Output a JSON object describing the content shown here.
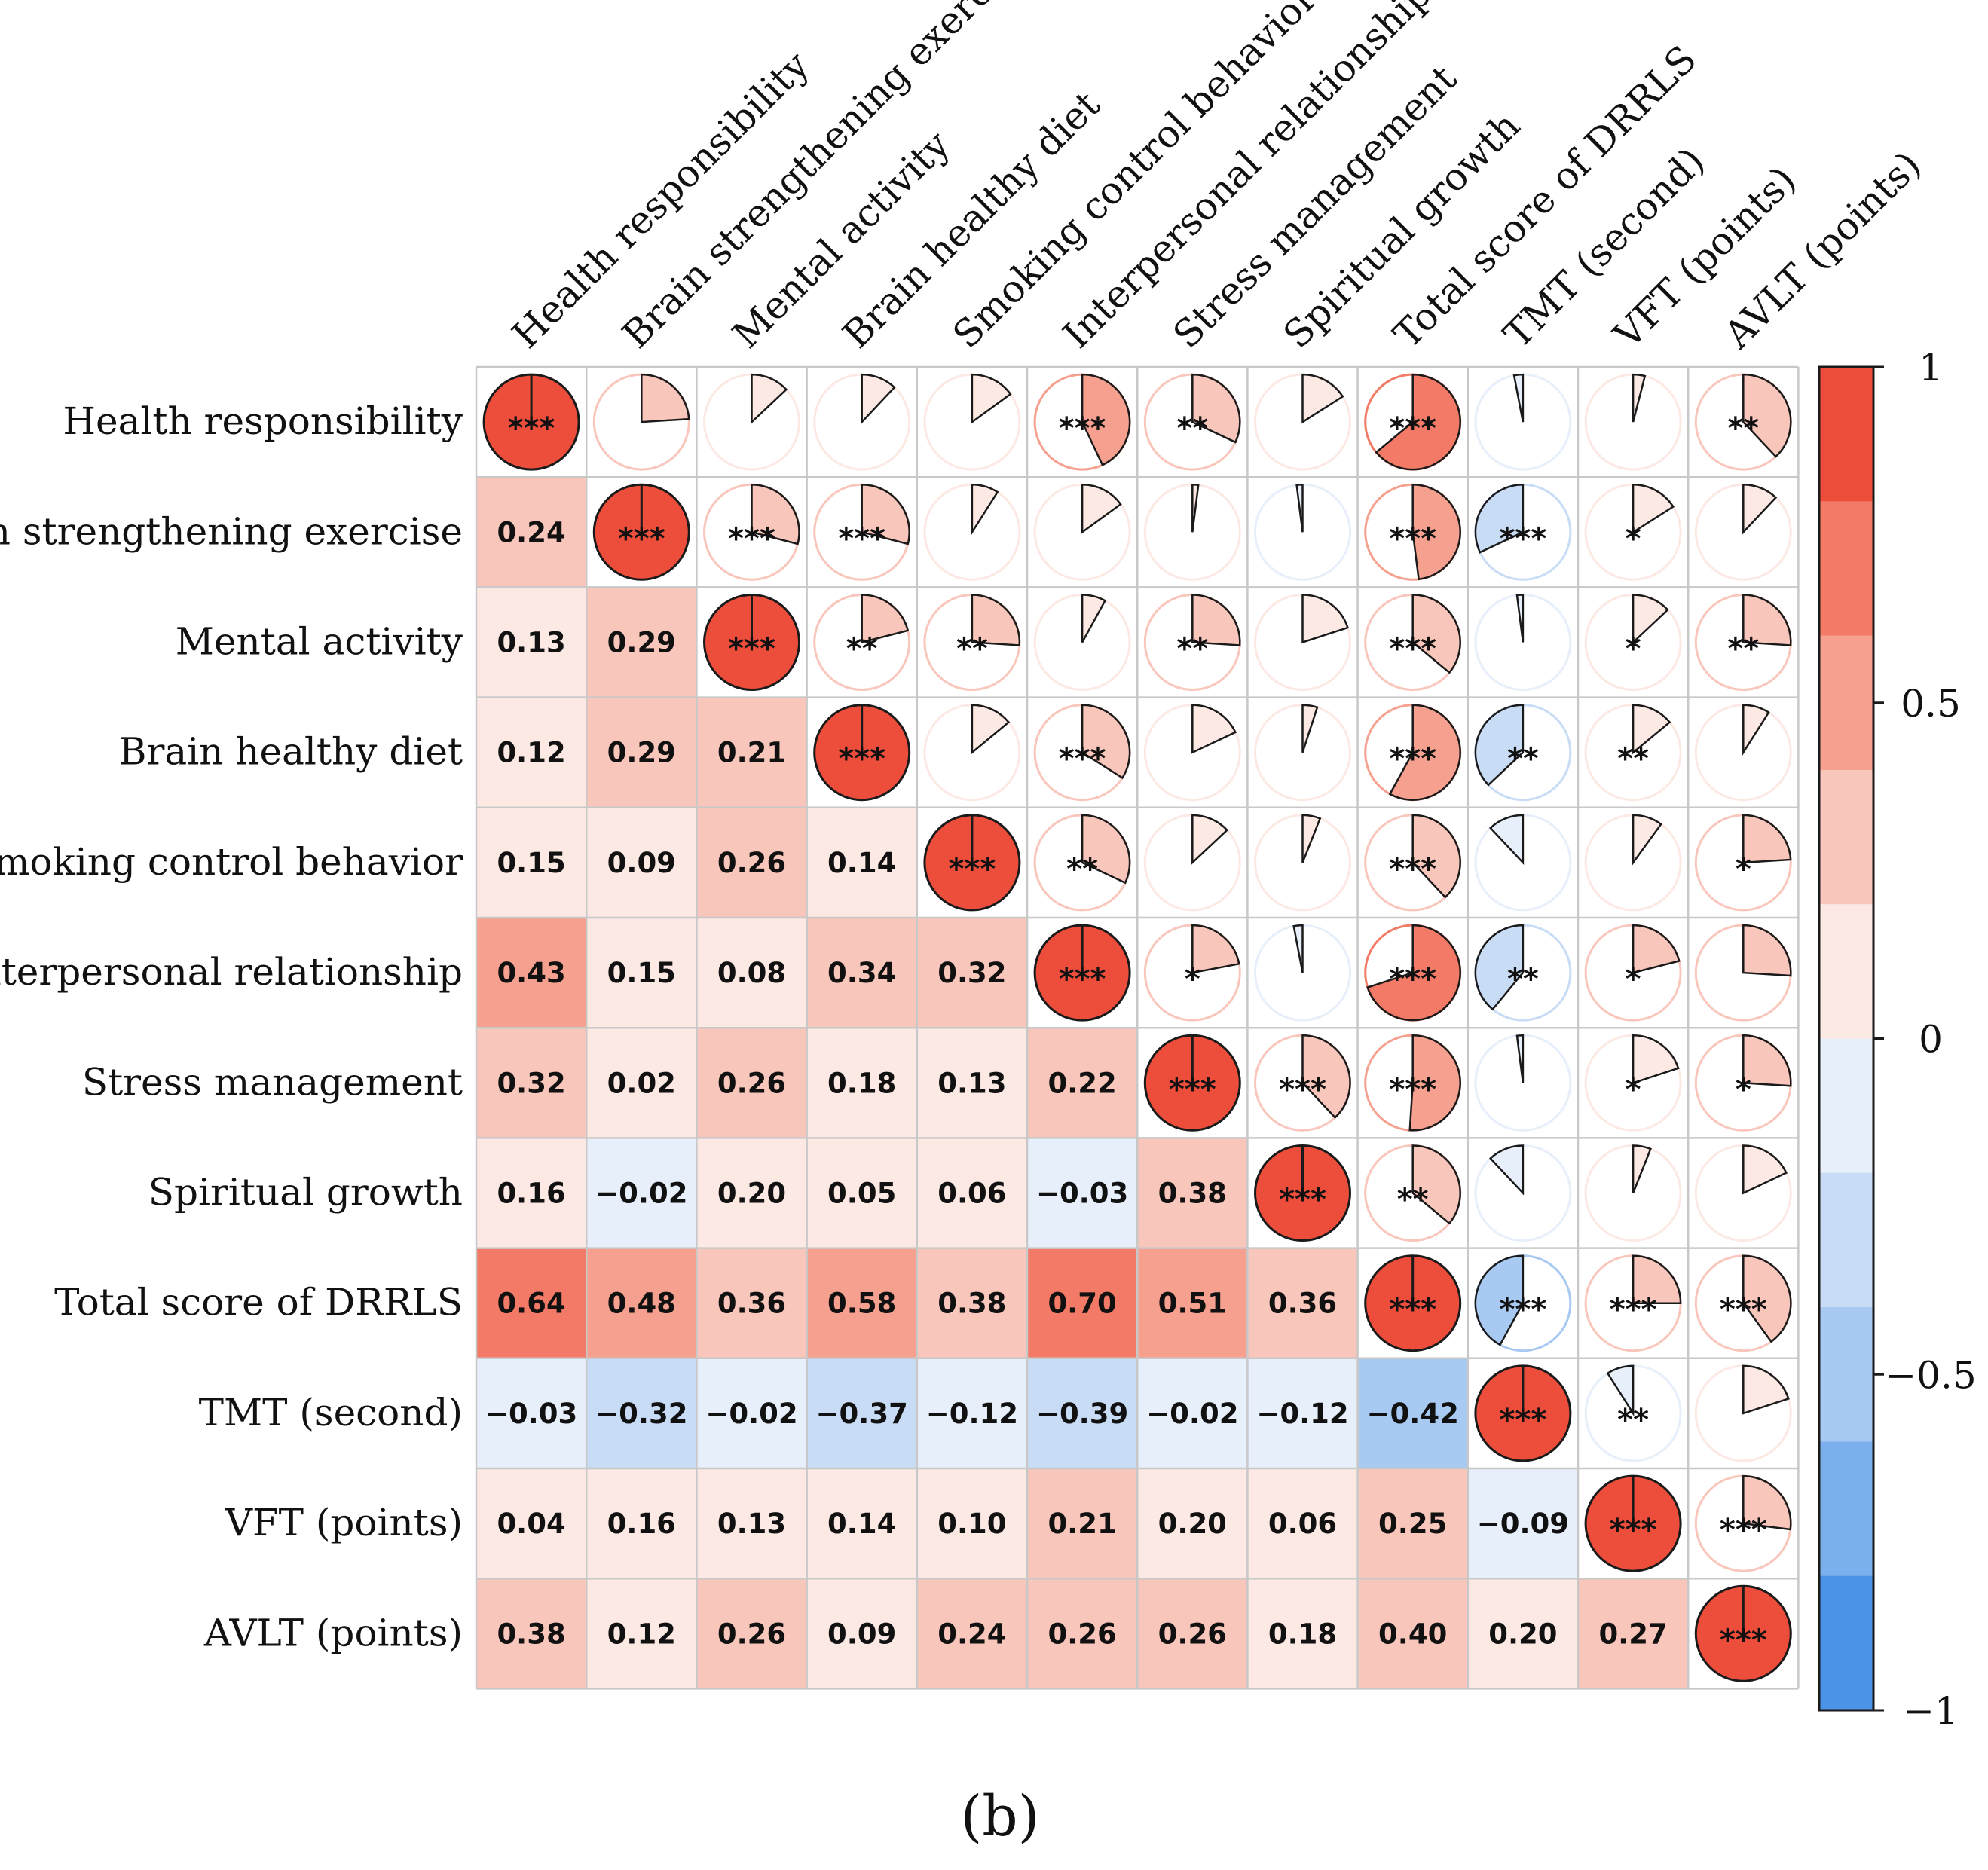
{
  "chart_data": {
    "type": "heatmap",
    "subtype": "correlation-matrix",
    "variables": [
      "Health responsibility",
      "Brain strengthening exercise",
      "Mental activity",
      "Brain healthy diet",
      "Smoking control behavior",
      "Interpersonal relationship",
      "Stress management",
      "Spiritual growth",
      "Total score of  DRRLS",
      "TMT (second)",
      "VFT (points)",
      "AVLT (points)"
    ],
    "column_labels": [
      "Health responsibility",
      "Brain strengthening exercise",
      "Mental activity",
      "Brain healthy diet",
      "Smoking control behavior",
      "Interpersonal relationship",
      "Stress management",
      "Spiritual growth",
      "Total score of DRRLS",
      "TMT (second)",
      "VFT (points)",
      "AVLT (points)"
    ],
    "matrix": [
      [
        1,
        0.24,
        0.13,
        0.12,
        0.15,
        0.43,
        0.32,
        0.16,
        0.64,
        -0.03,
        0.04,
        0.38
      ],
      [
        0.24,
        1,
        0.29,
        0.29,
        0.09,
        0.15,
        0.02,
        -0.02,
        0.48,
        -0.32,
        0.16,
        0.12
      ],
      [
        0.13,
        0.29,
        1,
        0.21,
        0.26,
        0.08,
        0.26,
        0.2,
        0.36,
        -0.02,
        0.13,
        0.26
      ],
      [
        0.12,
        0.29,
        0.21,
        1,
        0.14,
        0.34,
        0.18,
        0.05,
        0.58,
        -0.37,
        0.14,
        0.09
      ],
      [
        0.15,
        0.09,
        0.26,
        0.14,
        1,
        0.32,
        0.13,
        0.06,
        0.38,
        -0.12,
        0.1,
        0.24
      ],
      [
        0.43,
        0.15,
        0.08,
        0.34,
        0.32,
        1,
        0.22,
        -0.03,
        0.7,
        -0.39,
        0.21,
        0.26
      ],
      [
        0.32,
        0.02,
        0.26,
        0.18,
        0.13,
        0.22,
        1,
        0.38,
        0.51,
        -0.02,
        0.2,
        0.26
      ],
      [
        0.16,
        -0.02,
        0.2,
        0.05,
        0.06,
        -0.03,
        0.38,
        1,
        0.36,
        -0.12,
        0.06,
        0.18
      ],
      [
        0.64,
        0.48,
        0.36,
        0.58,
        0.38,
        0.7,
        0.51,
        0.36,
        1,
        -0.42,
        0.25,
        0.4
      ],
      [
        -0.03,
        -0.32,
        -0.02,
        -0.37,
        -0.12,
        -0.39,
        -0.02,
        -0.12,
        -0.42,
        1,
        -0.09,
        0.2
      ],
      [
        0.04,
        0.16,
        0.13,
        0.14,
        0.1,
        0.21,
        0.2,
        0.06,
        0.25,
        -0.09,
        1,
        0.27
      ],
      [
        0.38,
        0.12,
        0.26,
        0.09,
        0.24,
        0.26,
        0.26,
        0.18,
        0.4,
        0.2,
        0.27,
        1
      ]
    ],
    "lower_labels": [
      [
        null,
        null,
        null,
        null,
        null,
        null,
        null,
        null,
        null,
        null,
        null,
        null
      ],
      [
        "0.24",
        null,
        null,
        null,
        null,
        null,
        null,
        null,
        null,
        null,
        null,
        null
      ],
      [
        "0.13",
        "0.29",
        null,
        null,
        null,
        null,
        null,
        null,
        null,
        null,
        null,
        null
      ],
      [
        "0.12",
        "0.29",
        "0.21",
        null,
        null,
        null,
        null,
        null,
        null,
        null,
        null,
        null
      ],
      [
        "0.15",
        "0.09",
        "0.26",
        "0.14",
        null,
        null,
        null,
        null,
        null,
        null,
        null,
        null
      ],
      [
        "0.43",
        "0.15",
        "0.08",
        "0.34",
        "0.32",
        null,
        null,
        null,
        null,
        null,
        null,
        null
      ],
      [
        "0.32",
        "0.02",
        "0.26",
        "0.18",
        "0.13",
        "0.22",
        null,
        null,
        null,
        null,
        null,
        null
      ],
      [
        "0.16",
        "−0.02",
        "0.20",
        "0.05",
        "0.06",
        "−0.03",
        "0.38",
        null,
        null,
        null,
        null,
        null
      ],
      [
        "0.64",
        "0.48",
        "0.36",
        "0.58",
        "0.38",
        "0.70",
        "0.51",
        "0.36",
        null,
        null,
        null,
        null
      ],
      [
        "−0.03",
        "−0.32",
        "−0.02",
        "−0.37",
        "−0.12",
        "−0.39",
        "−0.02",
        "−0.12",
        "−0.42",
        null,
        null,
        null
      ],
      [
        "0.04",
        "0.16",
        "0.13",
        "0.14",
        "0.10",
        "0.21",
        "0.20",
        "0.06",
        "0.25",
        "−0.09",
        null,
        null
      ],
      [
        "0.38",
        "0.12",
        "0.26",
        "0.09",
        "0.24",
        "0.26",
        "0.26",
        "0.18",
        "0.40",
        "0.20",
        "0.27",
        null
      ]
    ],
    "significance": [
      [
        "***",
        "",
        "",
        "",
        "",
        "***",
        "**",
        "",
        "***",
        "",
        "",
        "**"
      ],
      [
        "",
        "***",
        "***",
        "***",
        "",
        "",
        "",
        "",
        "***",
        "***",
        "*",
        ""
      ],
      [
        "",
        "",
        "***",
        "**",
        "**",
        "",
        "**",
        "",
        "***",
        "",
        "*",
        "**"
      ],
      [
        "",
        "",
        "",
        "***",
        "",
        "***",
        "",
        "",
        "***",
        "**",
        "**",
        ""
      ],
      [
        "",
        "",
        "",
        "",
        "***",
        "**",
        "",
        "",
        "***",
        "",
        "",
        "*"
      ],
      [
        "",
        "",
        "",
        "",
        "",
        "***",
        "*",
        "",
        "***",
        "**",
        "*",
        ""
      ],
      [
        "",
        "",
        "",
        "",
        "",
        "",
        "***",
        "***",
        "***",
        "",
        "*",
        "*"
      ],
      [
        "",
        "",
        "",
        "",
        "",
        "",
        "",
        "***",
        "**",
        "",
        "",
        ""
      ],
      [
        "",
        "",
        "",
        "",
        "",
        "",
        "",
        "",
        "***",
        "***",
        "***",
        "***"
      ],
      [
        "",
        "",
        "",
        "",
        "",
        "",
        "",
        "",
        "",
        "***",
        "**",
        ""
      ],
      [
        "",
        "",
        "",
        "",
        "",
        "",
        "",
        "",
        "",
        "",
        "***",
        "***"
      ],
      [
        "",
        "",
        "",
        "",
        "",
        "",
        "",
        "",
        "",
        "",
        "",
        "***"
      ]
    ],
    "lower_triangle_style": "square-color-with-coefficient",
    "upper_triangle_style": "pie",
    "colorbar": {
      "range": [
        -1,
        1
      ],
      "ticks": [
        1,
        0.5,
        0,
        -0.5,
        -1
      ],
      "tick_labels": [
        "1",
        "0.5",
        "0",
        "−0.5",
        "−1"
      ],
      "palette": [
        "#ed4e3c",
        "#f27a66",
        "#f6a08f",
        "#f9c6bb",
        "#fde9e4",
        "#e7effa",
        "#c8dcf6",
        "#a8c9f2",
        "#7cb0ec",
        "#4a93e6"
      ]
    },
    "caption": "(b)"
  }
}
